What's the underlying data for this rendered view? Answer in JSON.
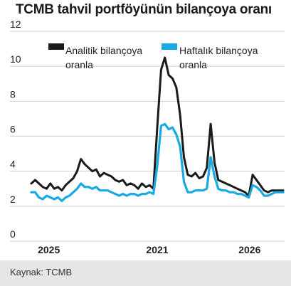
{
  "title": "TCMB tahvil portföyünün bilançoya oranı",
  "source": "Kaynak: TCMB",
  "colors": {
    "analytic": "#1a1a1a",
    "weekly": "#19a9e5",
    "grid": "#cfcfcf",
    "background": "#ffffff",
    "source_bar": "#e6e6e6"
  },
  "chart_data": {
    "type": "line",
    "title": "TCMB tahvil portföyünün bilançoya oranı",
    "xlabel": "",
    "ylabel": "",
    "ylim": [
      0,
      12
    ],
    "yticks": [
      "0",
      "2",
      "4",
      "6",
      "8",
      "10",
      "12"
    ],
    "xticks": [
      {
        "label": "2025",
        "at": 2.3
      },
      {
        "label": "2021",
        "at": 16.5
      },
      {
        "label": "2026",
        "at": 28.6
      }
    ],
    "xlim": [
      0,
      33
    ],
    "grid": true,
    "legend_position": "top",
    "series": [
      {
        "name": "Analitik bilançoya oranla",
        "color": "#1a1a1a",
        "x": [
          0,
          0.5,
          1,
          1.5,
          2,
          2.5,
          3,
          3.5,
          4,
          4.5,
          5,
          5.5,
          6,
          6.5,
          7,
          7.5,
          8,
          8.5,
          9,
          9.5,
          10,
          10.5,
          11,
          11.5,
          12,
          12.5,
          13,
          13.5,
          14,
          14.5,
          15,
          15.5,
          16,
          16.5,
          17,
          17.5,
          18,
          18.5,
          19,
          19.5,
          20,
          20.5,
          21,
          21.5,
          22,
          22.5,
          23,
          23.5,
          24,
          24.5,
          25,
          25.5,
          26,
          26.5,
          27,
          27.5,
          28,
          28.5,
          29,
          29.5,
          30,
          30.5,
          31,
          31.5,
          32,
          32.5,
          33
        ],
        "values": [
          3.3,
          3.5,
          3.3,
          3.1,
          3.0,
          3.3,
          3.0,
          3.1,
          2.9,
          3.2,
          3.4,
          3.6,
          4.0,
          4.7,
          4.4,
          4.2,
          4.0,
          4.1,
          3.7,
          3.9,
          3.8,
          3.7,
          3.5,
          3.4,
          3.5,
          3.2,
          3.3,
          3.2,
          3.0,
          3.3,
          3.1,
          3.2,
          3.0,
          6.5,
          9.8,
          10.5,
          9.5,
          9.3,
          8.8,
          7.2,
          4.8,
          3.8,
          3.7,
          3.9,
          3.6,
          3.7,
          4.2,
          6.7,
          4.5,
          3.5,
          3.4,
          3.3,
          3.2,
          3.1,
          3.0,
          2.9,
          2.8,
          2.6,
          3.8,
          3.5,
          3.2,
          2.9,
          2.8,
          2.9,
          2.9,
          2.9,
          2.9
        ]
      },
      {
        "name": "Haftalık bilançoya oranla",
        "color": "#19a9e5",
        "x": [
          0,
          0.5,
          1,
          1.5,
          2,
          2.5,
          3,
          3.5,
          4,
          4.5,
          5,
          5.5,
          6,
          6.5,
          7,
          7.5,
          8,
          8.5,
          9,
          9.5,
          10,
          10.5,
          11,
          11.5,
          12,
          12.5,
          13,
          13.5,
          14,
          14.5,
          15,
          15.5,
          16,
          16.5,
          17,
          17.5,
          18,
          18.5,
          19,
          19.5,
          20,
          20.5,
          21,
          21.5,
          22,
          22.5,
          23,
          23.5,
          24,
          24.5,
          25,
          25.5,
          26,
          26.5,
          27,
          27.5,
          28,
          28.5,
          29,
          29.5,
          30,
          30.5,
          31,
          31.5,
          32,
          32.5,
          33
        ],
        "values": [
          2.8,
          2.8,
          2.5,
          2.4,
          2.6,
          2.5,
          2.4,
          2.5,
          2.3,
          2.5,
          2.6,
          2.8,
          3.0,
          3.3,
          3.1,
          3.1,
          3.0,
          3.1,
          2.9,
          2.9,
          2.9,
          2.8,
          2.7,
          2.6,
          2.7,
          2.6,
          2.7,
          2.7,
          2.6,
          2.7,
          2.7,
          2.8,
          2.7,
          4.3,
          6.6,
          6.7,
          6.4,
          6.5,
          6.1,
          5.4,
          3.4,
          2.8,
          2.8,
          2.9,
          2.9,
          2.9,
          3.0,
          4.8,
          3.7,
          3.0,
          2.9,
          2.9,
          2.8,
          2.8,
          2.7,
          2.7,
          2.6,
          2.5,
          3.2,
          3.1,
          2.9,
          2.6,
          2.6,
          2.7,
          2.8,
          2.8,
          2.8
        ]
      }
    ]
  }
}
